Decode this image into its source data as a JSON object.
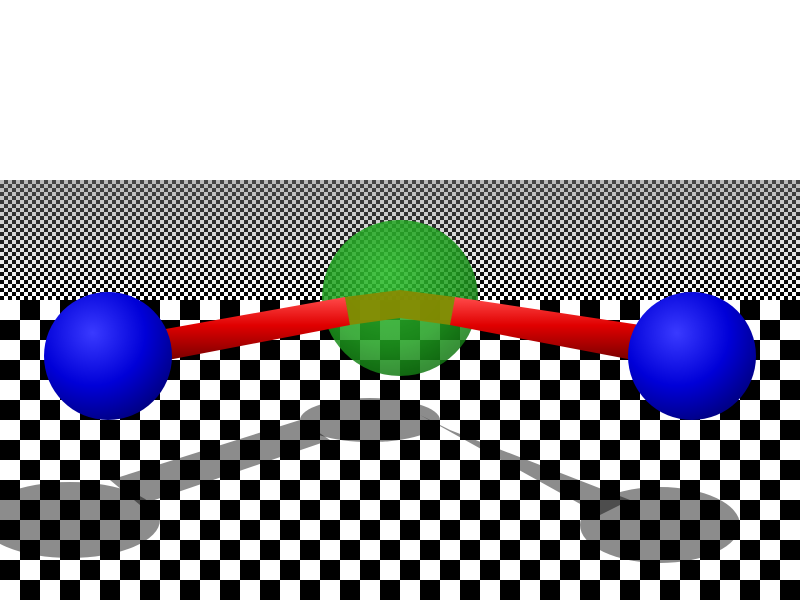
{
  "scene": {
    "background": "#ffffff",
    "floor": {
      "pattern": "checkerboard",
      "light_color": "#ffffff",
      "dark_color": "#000000"
    },
    "central_sphere": {
      "color": "#1f9e1f",
      "opacity": 0.85
    },
    "outer_spheres": {
      "color": "#0000e6",
      "count": 2
    },
    "bonds": {
      "color": "#e00000",
      "count": 2
    },
    "shadow_color": "#000000"
  }
}
